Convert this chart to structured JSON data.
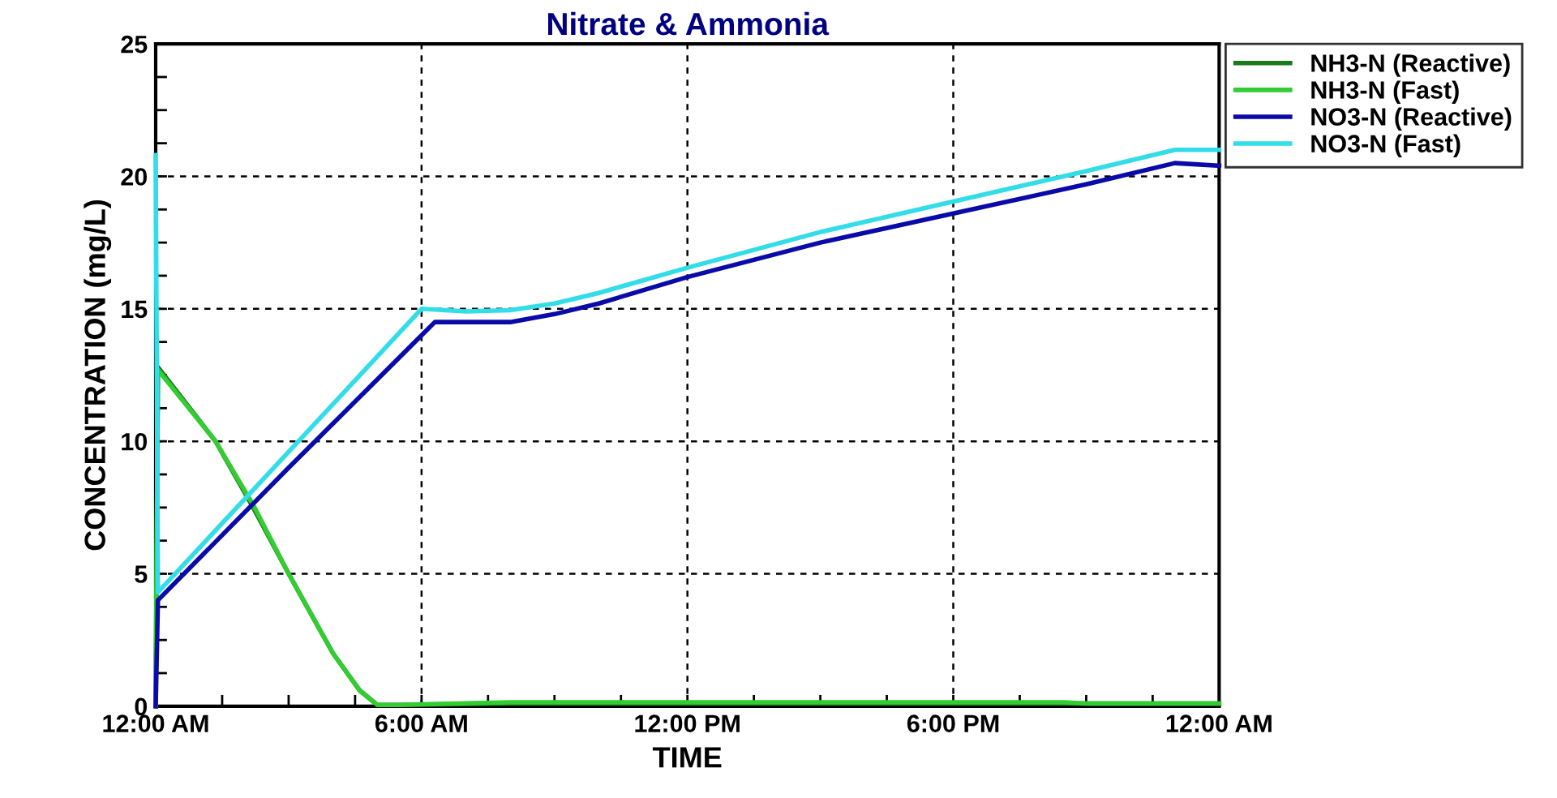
{
  "chart_data": {
    "type": "line",
    "title": "Nitrate & Ammonia",
    "xlabel": "TIME",
    "ylabel": "CONCENTRATION (mg/L)",
    "xlim": [
      0,
      24
    ],
    "ylim": [
      0,
      25
    ],
    "xticks": [
      {
        "value": 0,
        "label": "12:00 AM"
      },
      {
        "value": 1.5,
        "label": null
      },
      {
        "value": 3,
        "label": null
      },
      {
        "value": 4.5,
        "label": null
      },
      {
        "value": 6,
        "label": "6:00 AM"
      },
      {
        "value": 7.5,
        "label": null
      },
      {
        "value": 9,
        "label": null
      },
      {
        "value": 10.5,
        "label": null
      },
      {
        "value": 12,
        "label": "12:00 PM"
      },
      {
        "value": 13.5,
        "label": null
      },
      {
        "value": 15,
        "label": null
      },
      {
        "value": 16.5,
        "label": null
      },
      {
        "value": 18,
        "label": "6:00 PM"
      },
      {
        "value": 19.5,
        "label": null
      },
      {
        "value": 21,
        "label": null
      },
      {
        "value": 22.5,
        "label": null
      },
      {
        "value": 24,
        "label": "12:00 AM"
      }
    ],
    "yticks": [
      0,
      {
        "value": 1.25,
        "label": null
      },
      {
        "value": 2.5,
        "label": null
      },
      {
        "value": 3.75,
        "label": null
      },
      5,
      {
        "value": 6.25,
        "label": null
      },
      {
        "value": 7.5,
        "label": null
      },
      {
        "value": 8.75,
        "label": null
      },
      10,
      {
        "value": 11.25,
        "label": null
      },
      {
        "value": 12.5,
        "label": null
      },
      {
        "value": 13.75,
        "label": null
      },
      15,
      {
        "value": 16.25,
        "label": null
      },
      {
        "value": 17.5,
        "label": null
      },
      {
        "value": 18.75,
        "label": null
      },
      20,
      {
        "value": 21.25,
        "label": null
      },
      {
        "value": 22.5,
        "label": null
      },
      {
        "value": 23.75,
        "label": null
      },
      25
    ],
    "grid": true,
    "legend": "top right",
    "line_style": "solid",
    "marker": "none",
    "series": [
      {
        "name": "NH3-N (Reactive)",
        "color": "#1a7a1a",
        "x": [
          0,
          0.05,
          1.35,
          2.2,
          3.0,
          4.0,
          4.6,
          5.0,
          5.5,
          8,
          12,
          18,
          24
        ],
        "values": [
          0,
          12.8,
          10.0,
          7.5,
          5.0,
          2.0,
          0.6,
          0.05,
          0.05,
          0.1,
          0.1,
          0.1,
          0.1
        ]
      },
      {
        "name": "NH3-N (Fast)",
        "color": "#33cc33",
        "x": [
          0,
          0.05,
          1.35,
          2.2,
          3.0,
          4.0,
          4.6,
          5.0,
          5.5,
          8,
          12,
          18,
          20.5,
          21,
          24
        ],
        "values": [
          0,
          12.7,
          10.0,
          7.6,
          5.0,
          2.0,
          0.6,
          0.05,
          0.05,
          0.15,
          0.15,
          0.15,
          0.15,
          0.1,
          0.1
        ]
      },
      {
        "name": "NO3-N (Reactive)",
        "color": "#0a0aa8",
        "x": [
          0,
          0.05,
          3,
          6.3,
          8,
          9,
          10,
          12,
          15,
          18,
          21,
          23,
          24
        ],
        "values": [
          0,
          4.0,
          9.0,
          14.5,
          14.5,
          14.8,
          15.2,
          16.2,
          17.5,
          18.6,
          19.7,
          20.5,
          20.4
        ]
      },
      {
        "name": "NO3-N (Fast)",
        "color": "#33dde8",
        "x": [
          0,
          0.05,
          3,
          6.0,
          7,
          8,
          9,
          10,
          12,
          15,
          18,
          21,
          23,
          24
        ],
        "values": [
          20.8,
          4.3,
          9.6,
          15.0,
          14.9,
          14.95,
          15.2,
          15.6,
          16.55,
          17.9,
          19.05,
          20.2,
          21.0,
          21.0
        ]
      }
    ]
  }
}
